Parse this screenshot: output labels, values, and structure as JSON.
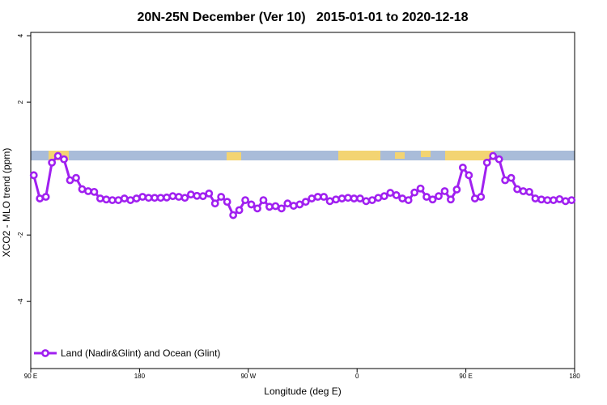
{
  "chart_data": {
    "type": "line",
    "title": "20N-25N December (Ver 10)   2015-01-01 to 2020-12-18",
    "x_label": "Longitude (deg E)",
    "y_label": "XCO2 - MLO trend (ppm)",
    "x": [
      92.5,
      97.5,
      102.5,
      107.5,
      112.5,
      117.5,
      122.5,
      127.5,
      132.5,
      137.5,
      142.5,
      147.5,
      152.5,
      157.5,
      162.5,
      167.5,
      172.5,
      177.5,
      182.5,
      187.5,
      192.5,
      197.5,
      202.5,
      207.5,
      212.5,
      217.5,
      222.5,
      227.5,
      232.5,
      237.5,
      242.5,
      247.5,
      252.5,
      257.5,
      262.5,
      267.5,
      272.5,
      277.5,
      282.5,
      287.5,
      292.5,
      297.5,
      302.5,
      307.5,
      312.5,
      317.5,
      322.5,
      327.5,
      332.5,
      337.5,
      342.5,
      347.5,
      352.5,
      357.5,
      362.5,
      367.5,
      372.5,
      377.5,
      382.5,
      387.5,
      392.5,
      397.5,
      402.5,
      407.5,
      412.5,
      417.5,
      422.5,
      427.5,
      432.5,
      437.5,
      442.5,
      447.5,
      452.5,
      457.5,
      462.5,
      467.5,
      472.5,
      477.5,
      482.5,
      487.5,
      492.5,
      497.5,
      502.5,
      507.5,
      512.5,
      517.5,
      522.5,
      527.5,
      532.5,
      537.5
    ],
    "series": [
      {
        "name": "Land (Nadir&Glint) and Ocean (Glint)",
        "color": "#a020f0",
        "values": [
          -0.2,
          -0.9,
          -0.85,
          0.18,
          0.38,
          0.28,
          -0.35,
          -0.28,
          -0.62,
          -0.68,
          -0.7,
          -0.9,
          -0.93,
          -0.95,
          -0.95,
          -0.9,
          -0.95,
          -0.9,
          -0.85,
          -0.88,
          -0.88,
          -0.88,
          -0.87,
          -0.83,
          -0.85,
          -0.88,
          -0.78,
          -0.82,
          -0.83,
          -0.75,
          -1.05,
          -0.85,
          -1.0,
          -1.4,
          -1.25,
          -0.95,
          -1.08,
          -1.2,
          -0.95,
          -1.15,
          -1.13,
          -1.2,
          -1.05,
          -1.12,
          -1.08,
          -1.0,
          -0.9,
          -0.85,
          -0.85,
          -0.98,
          -0.93,
          -0.9,
          -0.88,
          -0.9,
          -0.9,
          -0.98,
          -0.95,
          -0.88,
          -0.83,
          -0.73,
          -0.8,
          -0.9,
          -0.95,
          -0.72,
          -0.6,
          -0.85,
          -0.93,
          -0.83,
          -0.68,
          -0.93,
          -0.63,
          0.03,
          -0.2,
          -0.9,
          -0.85,
          0.18,
          0.38,
          0.28,
          -0.35,
          -0.28,
          -0.62,
          -0.68,
          -0.7,
          -0.9,
          -0.93,
          -0.95,
          -0.95,
          -0.92,
          -0.98,
          -0.95
        ]
      }
    ],
    "xlim": [
      90,
      540
    ],
    "xticks": [
      {
        "value": 90,
        "label": "90 E"
      },
      180,
      {
        "value": 270,
        "label": "90 W"
      },
      {
        "value": 360,
        "label": "0"
      },
      {
        "value": 450,
        "label": "90 E"
      },
      {
        "value": 540,
        "label": "180"
      }
    ],
    "ylim": [
      -6.02,
      4.1
    ],
    "yticks": [
      -4,
      -2,
      2,
      4
    ],
    "legend": "bottom-left"
  }
}
